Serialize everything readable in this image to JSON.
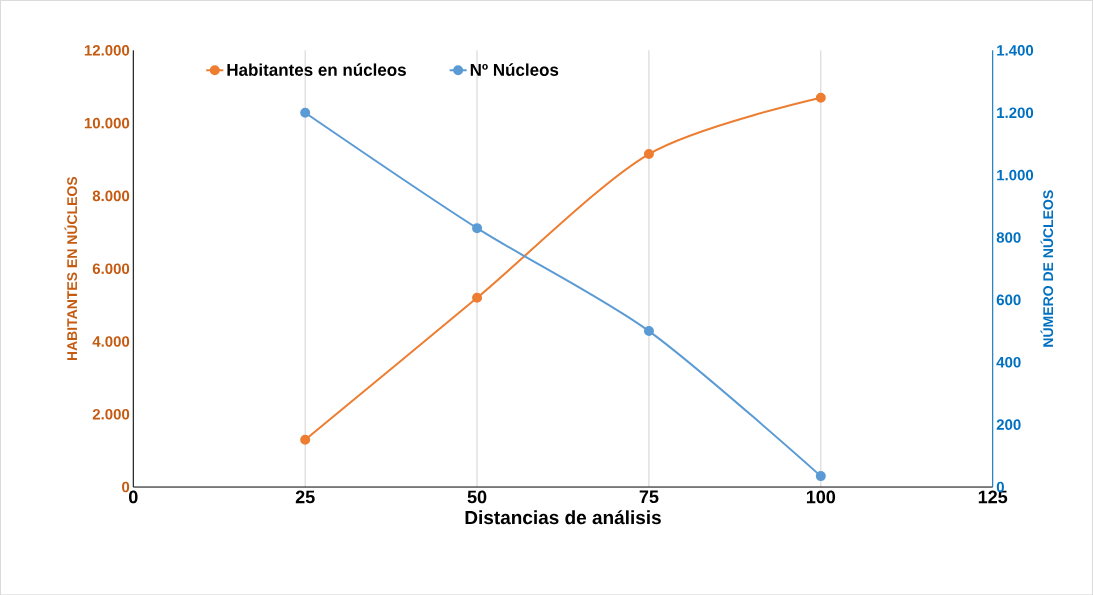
{
  "chart_data": {
    "type": "line",
    "xlabel": "Distancias de análisis",
    "ylabel": "HABITANTES EN NÚCLEOS",
    "y2label": "NÚMERO DE NÚCLEOS",
    "x": [
      25,
      50,
      75,
      100
    ],
    "series": [
      {
        "name": "Habitantes en núcleos",
        "color": "#ed7d31",
        "values": [
          1300,
          5200,
          9150,
          10700
        ]
      },
      {
        "name": "Nº Núcleos",
        "color": "#5b9bd5",
        "values": [
          1200,
          830,
          500,
          35
        ],
        "axis": "y2"
      }
    ],
    "xlim": [
      0,
      125
    ],
    "xticks": [
      0,
      25,
      50,
      75,
      100,
      125
    ],
    "ylim": [
      0,
      12000
    ],
    "yticks": [
      {
        "value": 0,
        "label": "0"
      },
      {
        "value": 2000,
        "label": "2.000"
      },
      {
        "value": 4000,
        "label": "4.000"
      },
      {
        "value": 6000,
        "label": "6.000"
      },
      {
        "value": 8000,
        "label": "8.000"
      },
      {
        "value": 10000,
        "label": "10.000"
      },
      {
        "value": 12000,
        "label": "12.000"
      }
    ],
    "y2lim": [
      0,
      1400
    ],
    "y2ticks": [
      0,
      200,
      400,
      600,
      800,
      {
        "value": 1000,
        "label": "1.000"
      },
      {
        "value": 1200,
        "label": "1.200"
      },
      {
        "value": 1400,
        "label": "1.400"
      }
    ],
    "grid": "x",
    "legend": "top left",
    "marker": "circle",
    "line_style": "solid"
  }
}
